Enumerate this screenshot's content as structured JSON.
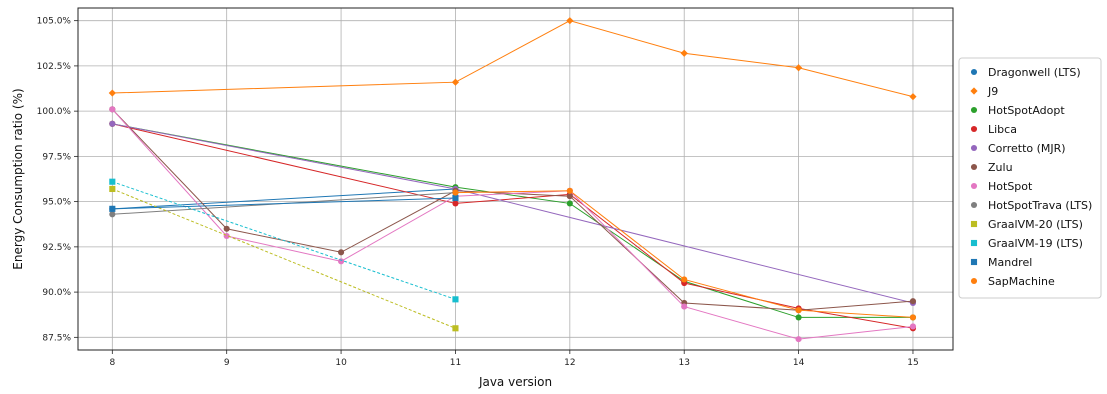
{
  "chart_data": {
    "type": "line",
    "xlabel": "Java version",
    "ylabel": "Energy Consumption ratio (%)",
    "xlim": [
      7.7,
      15.35
    ],
    "ylim": [
      86.8,
      105.7
    ],
    "xticks": [
      8,
      9,
      10,
      11,
      12,
      13,
      14,
      15
    ],
    "yticks": [
      87.5,
      90.0,
      92.5,
      95.0,
      97.5,
      100.0,
      102.5,
      105.0
    ],
    "ytick_labels": [
      "87.5%",
      "90.0%",
      "92.5%",
      "95.0%",
      "97.5%",
      "100.0%",
      "102.5%",
      "105.0%"
    ],
    "grid": true,
    "legend_position": "right",
    "series": [
      {
        "name": "Dragonwell (LTS)",
        "color": "#1f77b4",
        "marker": "circle",
        "dashed": false,
        "points": [
          [
            8,
            94.6
          ],
          [
            11,
            95.7
          ]
        ]
      },
      {
        "name": "J9",
        "color": "#ff7f0e",
        "marker": "diamond",
        "dashed": false,
        "points": [
          [
            8,
            101.0
          ],
          [
            11,
            101.6
          ],
          [
            12,
            105.0
          ],
          [
            13,
            103.2
          ],
          [
            14,
            102.4
          ],
          [
            15,
            100.8
          ]
        ]
      },
      {
        "name": "HotSpotAdopt",
        "color": "#2ca02c",
        "marker": "circle",
        "dashed": false,
        "points": [
          [
            8,
            99.3
          ],
          [
            11,
            95.8
          ],
          [
            12,
            94.9
          ],
          [
            13,
            90.6
          ],
          [
            14,
            88.6
          ],
          [
            15,
            88.6
          ]
        ]
      },
      {
        "name": "Libca",
        "color": "#d62728",
        "marker": "circle",
        "dashed": false,
        "points": [
          [
            8,
            99.3
          ],
          [
            11,
            94.9
          ],
          [
            12,
            95.4
          ],
          [
            13,
            90.5
          ],
          [
            14,
            89.1
          ],
          [
            15,
            88.0
          ]
        ]
      },
      {
        "name": "Corretto (MJR)",
        "color": "#9467bd",
        "marker": "circle",
        "dashed": false,
        "points": [
          [
            8,
            99.3
          ],
          [
            11,
            95.7
          ],
          [
            15,
            89.4
          ]
        ]
      },
      {
        "name": "Zulu",
        "color": "#8c564b",
        "marker": "circle",
        "dashed": false,
        "points": [
          [
            8,
            100.1
          ],
          [
            9,
            93.5
          ],
          [
            10,
            92.2
          ],
          [
            11,
            95.6
          ],
          [
            12,
            95.3
          ],
          [
            13,
            89.4
          ],
          [
            14,
            89.0
          ],
          [
            15,
            89.5
          ]
        ]
      },
      {
        "name": "HotSpot",
        "color": "#e377c2",
        "marker": "circle",
        "dashed": false,
        "points": [
          [
            8,
            100.1
          ],
          [
            9,
            93.1
          ],
          [
            10,
            91.7
          ],
          [
            11,
            95.3
          ],
          [
            12,
            95.6
          ],
          [
            13,
            89.2
          ],
          [
            14,
            87.4
          ],
          [
            15,
            88.1
          ]
        ]
      },
      {
        "name": "HotSpotTrava (LTS)",
        "color": "#7f7f7f",
        "marker": "circle",
        "dashed": false,
        "points": [
          [
            8,
            94.3
          ],
          [
            11,
            95.5
          ]
        ]
      },
      {
        "name": "GraalVM-20 (LTS)",
        "color": "#bcbd22",
        "marker": "square",
        "dashed": true,
        "points": [
          [
            8,
            95.7
          ],
          [
            11,
            88.0
          ]
        ]
      },
      {
        "name": "GraalVM-19 (LTS)",
        "color": "#17becf",
        "marker": "square",
        "dashed": true,
        "points": [
          [
            8,
            96.1
          ],
          [
            11,
            89.6
          ]
        ]
      },
      {
        "name": "Mandrel",
        "color": "#1f77b4",
        "marker": "square",
        "dashed": false,
        "points": [
          [
            8,
            94.6
          ],
          [
            11,
            95.2
          ]
        ]
      },
      {
        "name": "SapMachine",
        "color": "#ff7f0e",
        "marker": "circle",
        "dashed": false,
        "points": [
          [
            11,
            95.5
          ],
          [
            12,
            95.6
          ],
          [
            13,
            90.7
          ],
          [
            14,
            89.0
          ],
          [
            15,
            88.6
          ]
        ]
      }
    ]
  }
}
